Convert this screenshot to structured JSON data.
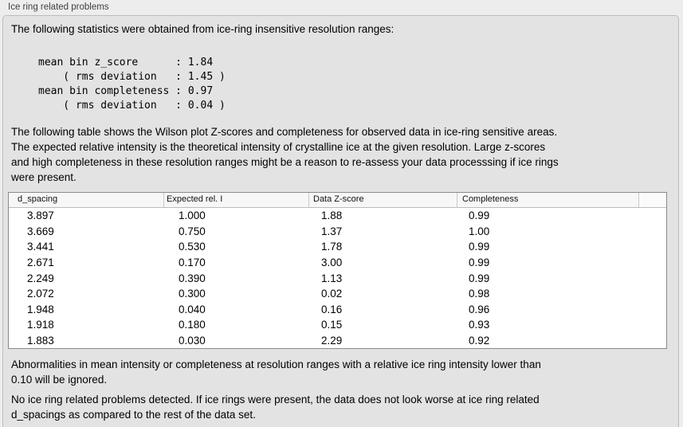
{
  "panel": {
    "title": "Ice ring related problems"
  },
  "intro": "The following statistics were obtained from ice-ring insensitive resolution ranges:",
  "stats_block": "mean bin z_score      : 1.84\n    ( rms deviation   : 1.45 )\nmean bin completeness : 0.97\n    ( rms deviation   : 0.04 )",
  "description": "The following table shows the Wilson plot Z-scores and completeness for observed data in ice-ring sensitive areas.\nThe expected relative intensity is the theoretical intensity of crystalline ice at the given resolution. Large z-scores\nand high completeness in these resolution ranges might be a reason to re-assess your data processsing if ice rings\nwere present.",
  "table": {
    "columns": [
      "d_spacing",
      "Expected rel. I",
      "Data Z-score",
      "Completeness"
    ],
    "rows": [
      [
        "3.897",
        "1.000",
        "1.88",
        "0.99"
      ],
      [
        "3.669",
        "0.750",
        "1.37",
        "1.00"
      ],
      [
        "3.441",
        "0.530",
        "1.78",
        "0.99"
      ],
      [
        "2.671",
        "0.170",
        "3.00",
        "0.99"
      ],
      [
        "2.249",
        "0.390",
        "1.13",
        "0.99"
      ],
      [
        "2.072",
        "0.300",
        "0.02",
        "0.98"
      ],
      [
        "1.948",
        "0.040",
        "0.16",
        "0.96"
      ],
      [
        "1.918",
        "0.180",
        "0.15",
        "0.93"
      ],
      [
        "1.883",
        "0.030",
        "2.29",
        "0.92"
      ]
    ]
  },
  "note_ignore": "Abnormalities in mean intensity or completeness at resolution ranges with a relative ice ring intensity lower than\n0.10 will be ignored.",
  "conclusion": "No ice ring related problems detected. If ice rings were present, the data does not look worse at ice ring related\nd_spacings as compared to the rest of the data set."
}
